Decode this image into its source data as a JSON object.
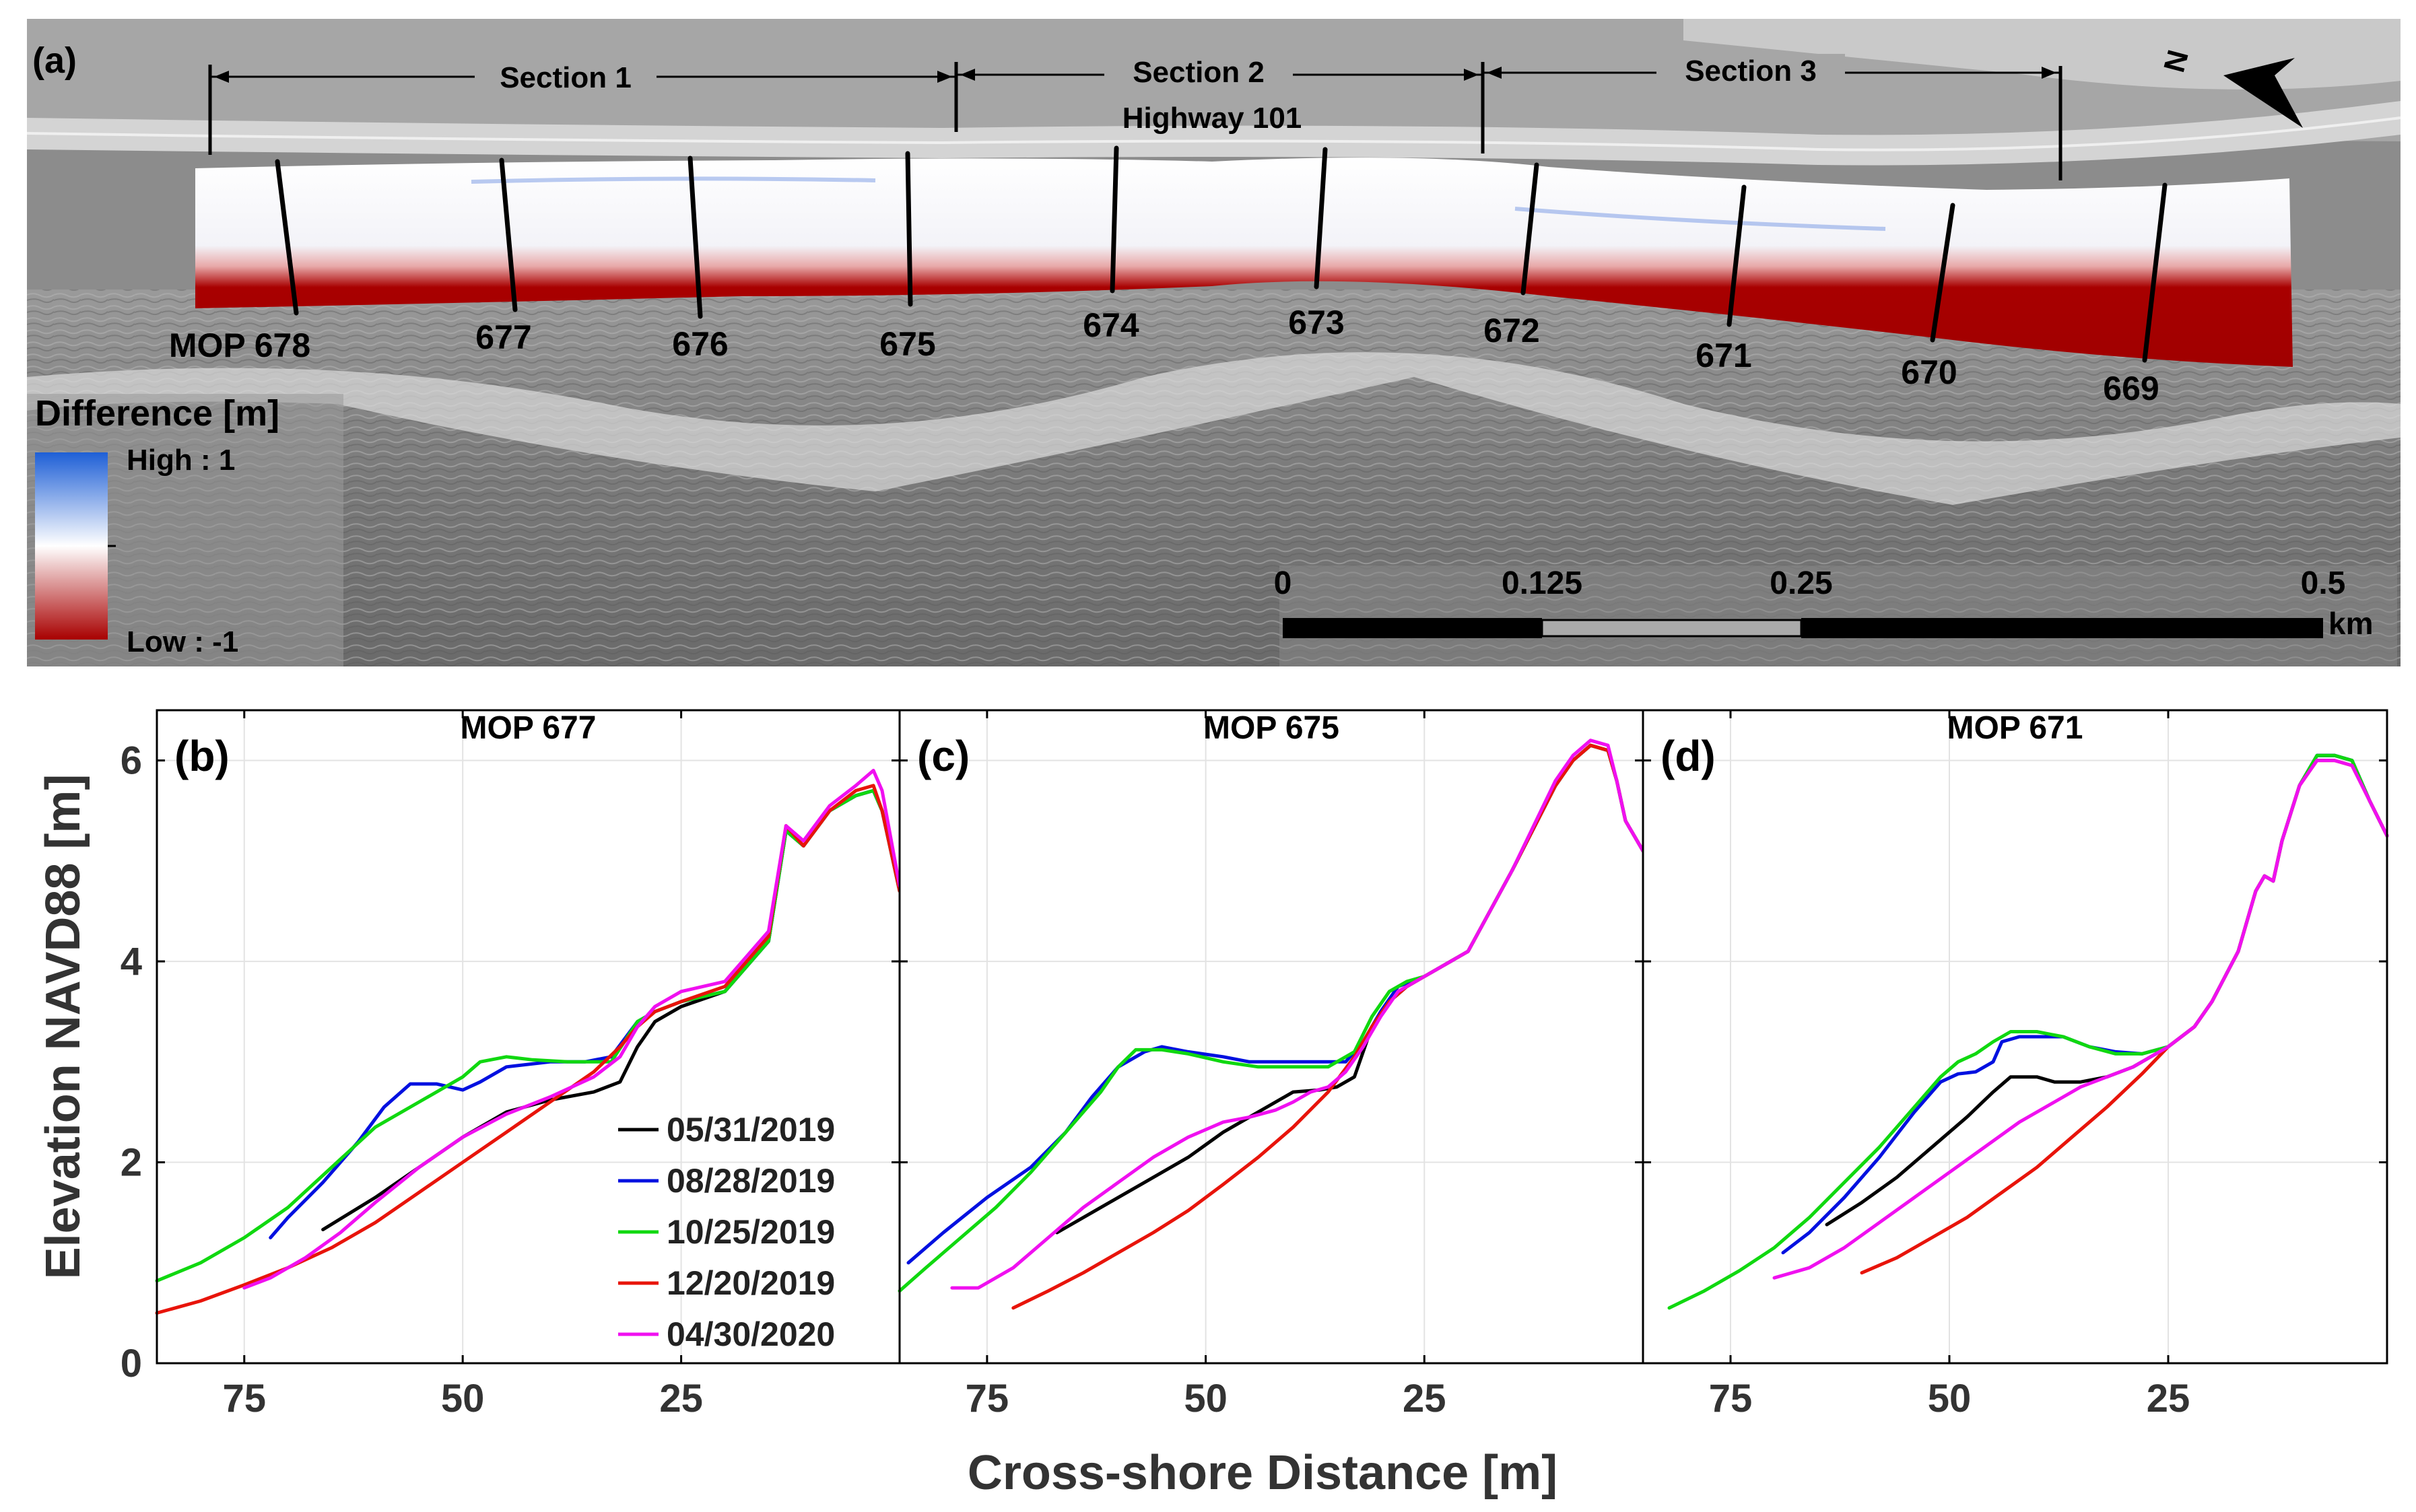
{
  "map_panel": {
    "panel_label": "(a)",
    "sections": [
      "Section 1",
      "Section 2",
      "Section 3"
    ],
    "road_label": "Highway 101",
    "north_symbol": "N",
    "north_icon": "north-arrow-icon",
    "transects": [
      "MOP 678",
      "677",
      "676",
      "675",
      "674",
      "673",
      "672",
      "671",
      "670",
      "669"
    ],
    "colorbar": {
      "title": "Difference [m]",
      "high_label": "High : 1",
      "low_label": "Low : -1",
      "colors": {
        "high": "#1e5fd6",
        "mid": "#ffffff",
        "low": "#a80000"
      }
    },
    "scalebar": {
      "ticks": [
        "0",
        "0.125",
        "0.25",
        "0.5"
      ],
      "unit": "km"
    }
  },
  "colors": {
    "05/31/2019": "#000000",
    "08/28/2019": "#0010e0",
    "10/25/2019": "#10d810",
    "12/20/2019": "#e8140a",
    "04/30/2020": "#f010f0"
  },
  "chart_data": [
    {
      "type": "line",
      "panel_label": "(b)",
      "title": "MOP 677",
      "xlabel": "Cross-shore Distance [m]",
      "ylabel": "Elevation NAVD88 [m]",
      "xlim": [
        85,
        0
      ],
      "ylim": [
        0,
        6.5
      ],
      "xticks": [
        75,
        50,
        25
      ],
      "yticks": [
        0,
        2,
        4,
        6
      ],
      "grid": true,
      "legend_position": "lower-right",
      "series": [
        {
          "name": "05/31/2019",
          "x": [
            66,
            60,
            55,
            50,
            45,
            40,
            35,
            32,
            30,
            28,
            25,
            20,
            15,
            13,
            11,
            8,
            5,
            3,
            2,
            0
          ],
          "y": [
            1.33,
            1.65,
            1.95,
            2.25,
            2.5,
            2.62,
            2.7,
            2.8,
            3.15,
            3.4,
            3.55,
            3.7,
            4.2,
            5.3,
            5.15,
            5.5,
            5.65,
            5.7,
            5.5,
            4.7
          ]
        },
        {
          "name": "08/28/2019",
          "x": [
            72,
            70,
            66,
            62,
            59,
            56,
            53,
            50,
            48,
            45,
            40,
            36,
            33,
            30,
            28,
            25,
            20,
            15,
            13,
            11,
            8,
            5,
            3,
            2,
            0
          ],
          "y": [
            1.25,
            1.45,
            1.8,
            2.2,
            2.55,
            2.78,
            2.78,
            2.72,
            2.8,
            2.95,
            3.0,
            3.0,
            3.05,
            3.4,
            3.5,
            3.6,
            3.7,
            4.2,
            5.3,
            5.15,
            5.5,
            5.65,
            5.7,
            5.5,
            4.7
          ]
        },
        {
          "name": "10/25/2019",
          "x": [
            85,
            80,
            75,
            70,
            65,
            60,
            55,
            50,
            48,
            45,
            42,
            38,
            35,
            33,
            30,
            28,
            25,
            20,
            15,
            13,
            11,
            8,
            5,
            3,
            2,
            0
          ],
          "y": [
            0.82,
            1.0,
            1.25,
            1.55,
            1.95,
            2.35,
            2.6,
            2.85,
            3.0,
            3.05,
            3.02,
            3.0,
            3.0,
            3.0,
            3.4,
            3.5,
            3.6,
            3.7,
            4.2,
            5.3,
            5.15,
            5.5,
            5.65,
            5.7,
            5.5,
            4.7
          ]
        },
        {
          "name": "12/20/2019",
          "x": [
            85,
            80,
            75,
            70,
            65,
            60,
            55,
            50,
            45,
            40,
            35,
            32,
            30,
            28,
            25,
            20,
            15,
            13,
            11,
            8,
            5,
            3,
            2,
            0
          ],
          "y": [
            0.5,
            0.62,
            0.78,
            0.95,
            1.15,
            1.4,
            1.7,
            2.0,
            2.3,
            2.6,
            2.9,
            3.15,
            3.35,
            3.5,
            3.6,
            3.75,
            4.25,
            5.35,
            5.15,
            5.5,
            5.7,
            5.75,
            5.5,
            4.7
          ]
        },
        {
          "name": "04/30/2020",
          "x": [
            75,
            72,
            68,
            64,
            60,
            55,
            50,
            45,
            40,
            35,
            32,
            30,
            28,
            25,
            20,
            15,
            13,
            11,
            8,
            5,
            3,
            2,
            0
          ],
          "y": [
            0.75,
            0.85,
            1.05,
            1.3,
            1.6,
            1.95,
            2.25,
            2.48,
            2.65,
            2.85,
            3.05,
            3.35,
            3.55,
            3.7,
            3.8,
            4.3,
            5.35,
            5.2,
            5.55,
            5.75,
            5.9,
            5.7,
            4.75
          ]
        }
      ]
    },
    {
      "type": "line",
      "panel_label": "(c)",
      "title": "MOP 675",
      "xlabel": "Cross-shore Distance [m]",
      "ylabel": "Elevation NAVD88 [m]",
      "xlim": [
        85,
        0
      ],
      "ylim": [
        0,
        6.5
      ],
      "xticks": [
        75,
        50,
        25
      ],
      "yticks": [
        0,
        2,
        4,
        6
      ],
      "grid": true,
      "series": [
        {
          "name": "05/31/2019",
          "x": [
            67,
            62,
            57,
            52,
            48,
            44,
            40,
            37,
            35,
            33,
            31,
            29,
            27,
            25,
            20,
            15,
            10,
            8,
            6,
            4,
            3,
            2,
            0
          ],
          "y": [
            1.3,
            1.55,
            1.8,
            2.05,
            2.3,
            2.5,
            2.7,
            2.72,
            2.75,
            2.85,
            3.35,
            3.6,
            3.75,
            3.85,
            4.1,
            4.9,
            5.75,
            6.0,
            6.15,
            6.1,
            5.8,
            5.4,
            5.1
          ]
        },
        {
          "name": "08/28/2019",
          "x": [
            84,
            80,
            75,
            70,
            66,
            63,
            60,
            57,
            55,
            52,
            48,
            45,
            42,
            38,
            34,
            32,
            30,
            28,
            25,
            20,
            15,
            10,
            8,
            6,
            4,
            3,
            2,
            0
          ],
          "y": [
            1.0,
            1.3,
            1.65,
            1.95,
            2.3,
            2.65,
            2.95,
            3.1,
            3.15,
            3.1,
            3.05,
            3.0,
            3.0,
            3.0,
            3.0,
            3.2,
            3.5,
            3.75,
            3.85,
            4.1,
            4.9,
            5.75,
            6.0,
            6.15,
            6.1,
            5.8,
            5.4,
            5.1
          ]
        },
        {
          "name": "10/25/2019",
          "x": [
            85,
            82,
            78,
            74,
            70,
            66,
            62,
            60,
            58,
            55,
            52,
            48,
            44,
            40,
            36,
            33,
            31,
            29,
            27,
            25,
            20,
            15,
            10,
            8,
            6,
            4,
            3,
            2,
            0
          ],
          "y": [
            0.72,
            0.95,
            1.25,
            1.55,
            1.9,
            2.3,
            2.7,
            2.95,
            3.12,
            3.12,
            3.08,
            3.0,
            2.95,
            2.95,
            2.95,
            3.1,
            3.45,
            3.7,
            3.8,
            3.85,
            4.1,
            4.9,
            5.75,
            6.0,
            6.15,
            6.1,
            5.8,
            5.4,
            5.1
          ]
        },
        {
          "name": "12/20/2019",
          "x": [
            72,
            68,
            64,
            60,
            56,
            52,
            48,
            44,
            40,
            36,
            33,
            31,
            29,
            27,
            25,
            20,
            15,
            10,
            8,
            6,
            4,
            3,
            2,
            0
          ],
          "y": [
            0.55,
            0.72,
            0.9,
            1.1,
            1.3,
            1.52,
            1.78,
            2.05,
            2.35,
            2.7,
            3.05,
            3.35,
            3.6,
            3.75,
            3.85,
            4.1,
            4.9,
            5.75,
            6.0,
            6.15,
            6.1,
            5.8,
            5.4,
            5.1
          ]
        },
        {
          "name": "04/30/2020",
          "x": [
            79,
            76,
            72,
            68,
            64,
            60,
            56,
            52,
            48,
            45,
            42,
            40,
            38,
            36,
            34,
            32,
            30,
            28,
            25,
            20,
            15,
            10,
            8,
            6,
            4,
            3,
            2,
            0
          ],
          "y": [
            0.75,
            0.75,
            0.95,
            1.25,
            1.55,
            1.8,
            2.05,
            2.25,
            2.4,
            2.45,
            2.52,
            2.6,
            2.7,
            2.75,
            2.9,
            3.15,
            3.45,
            3.7,
            3.85,
            4.1,
            4.9,
            5.8,
            6.05,
            6.2,
            6.15,
            5.8,
            5.4,
            5.1
          ]
        }
      ]
    },
    {
      "type": "line",
      "panel_label": "(d)",
      "title": "MOP 671",
      "xlabel": "Cross-shore Distance [m]",
      "ylabel": "Elevation NAVD88 [m]",
      "xlim": [
        85,
        0
      ],
      "ylim": [
        0,
        6.5
      ],
      "xticks": [
        75,
        50,
        25
      ],
      "yticks": [
        0,
        2,
        4,
        6
      ],
      "grid": true,
      "series": [
        {
          "name": "05/31/2019",
          "x": [
            64,
            60,
            56,
            52,
            48,
            45,
            43,
            40,
            38,
            35,
            32,
            29,
            27,
            25,
            22,
            20,
            17,
            15,
            14,
            13,
            12,
            10,
            8,
            6,
            4,
            2,
            0
          ],
          "y": [
            1.38,
            1.6,
            1.85,
            2.15,
            2.45,
            2.7,
            2.85,
            2.85,
            2.8,
            2.8,
            2.85,
            2.95,
            3.05,
            3.15,
            3.35,
            3.6,
            4.1,
            4.7,
            4.85,
            4.8,
            5.2,
            5.75,
            6.05,
            6.05,
            6.0,
            5.6,
            5.25
          ]
        },
        {
          "name": "08/28/2019",
          "x": [
            69,
            66,
            62,
            58,
            54,
            51,
            49,
            47,
            45,
            44,
            42,
            40,
            37,
            34,
            31,
            28,
            25,
            22,
            20,
            17,
            15,
            14,
            13,
            12,
            10,
            8,
            6,
            4,
            2,
            0
          ],
          "y": [
            1.1,
            1.3,
            1.65,
            2.05,
            2.5,
            2.8,
            2.88,
            2.9,
            3.0,
            3.2,
            3.25,
            3.25,
            3.25,
            3.15,
            3.1,
            3.08,
            3.15,
            3.35,
            3.6,
            4.1,
            4.7,
            4.85,
            4.8,
            5.2,
            5.75,
            6.05,
            6.05,
            6.0,
            5.6,
            5.25
          ]
        },
        {
          "name": "10/25/2019",
          "x": [
            82,
            78,
            74,
            70,
            66,
            62,
            58,
            54,
            51,
            49,
            47,
            45,
            43,
            40,
            37,
            34,
            31,
            28,
            25,
            22,
            20,
            17,
            15,
            14,
            13,
            12,
            10,
            8,
            6,
            4,
            2,
            0
          ],
          "y": [
            0.55,
            0.72,
            0.92,
            1.15,
            1.45,
            1.8,
            2.15,
            2.55,
            2.85,
            3.0,
            3.08,
            3.2,
            3.3,
            3.3,
            3.25,
            3.15,
            3.08,
            3.08,
            3.15,
            3.35,
            3.6,
            4.1,
            4.7,
            4.85,
            4.8,
            5.2,
            5.75,
            6.05,
            6.05,
            6.0,
            5.6,
            5.25
          ]
        },
        {
          "name": "12/20/2019",
          "x": [
            60,
            56,
            52,
            48,
            44,
            40,
            36,
            32,
            28,
            25,
            22,
            20,
            17,
            15,
            14,
            13,
            12,
            10,
            8,
            6,
            4,
            2,
            0
          ],
          "y": [
            0.9,
            1.05,
            1.25,
            1.45,
            1.7,
            1.95,
            2.25,
            2.55,
            2.88,
            3.15,
            3.35,
            3.6,
            4.1,
            4.7,
            4.85,
            4.8,
            5.2,
            5.75,
            6.0,
            6.0,
            5.95,
            5.6,
            5.25
          ]
        },
        {
          "name": "04/30/2020",
          "x": [
            70,
            66,
            62,
            58,
            54,
            50,
            46,
            42,
            38,
            35,
            32,
            29,
            27,
            25,
            22,
            20,
            17,
            15,
            14,
            13,
            12,
            10,
            8,
            6,
            4,
            2,
            0
          ],
          "y": [
            0.85,
            0.95,
            1.15,
            1.4,
            1.65,
            1.9,
            2.15,
            2.4,
            2.6,
            2.75,
            2.85,
            2.95,
            3.05,
            3.15,
            3.35,
            3.6,
            4.1,
            4.7,
            4.85,
            4.8,
            5.2,
            5.75,
            6.0,
            6.0,
            5.95,
            5.6,
            5.25
          ]
        }
      ]
    }
  ]
}
